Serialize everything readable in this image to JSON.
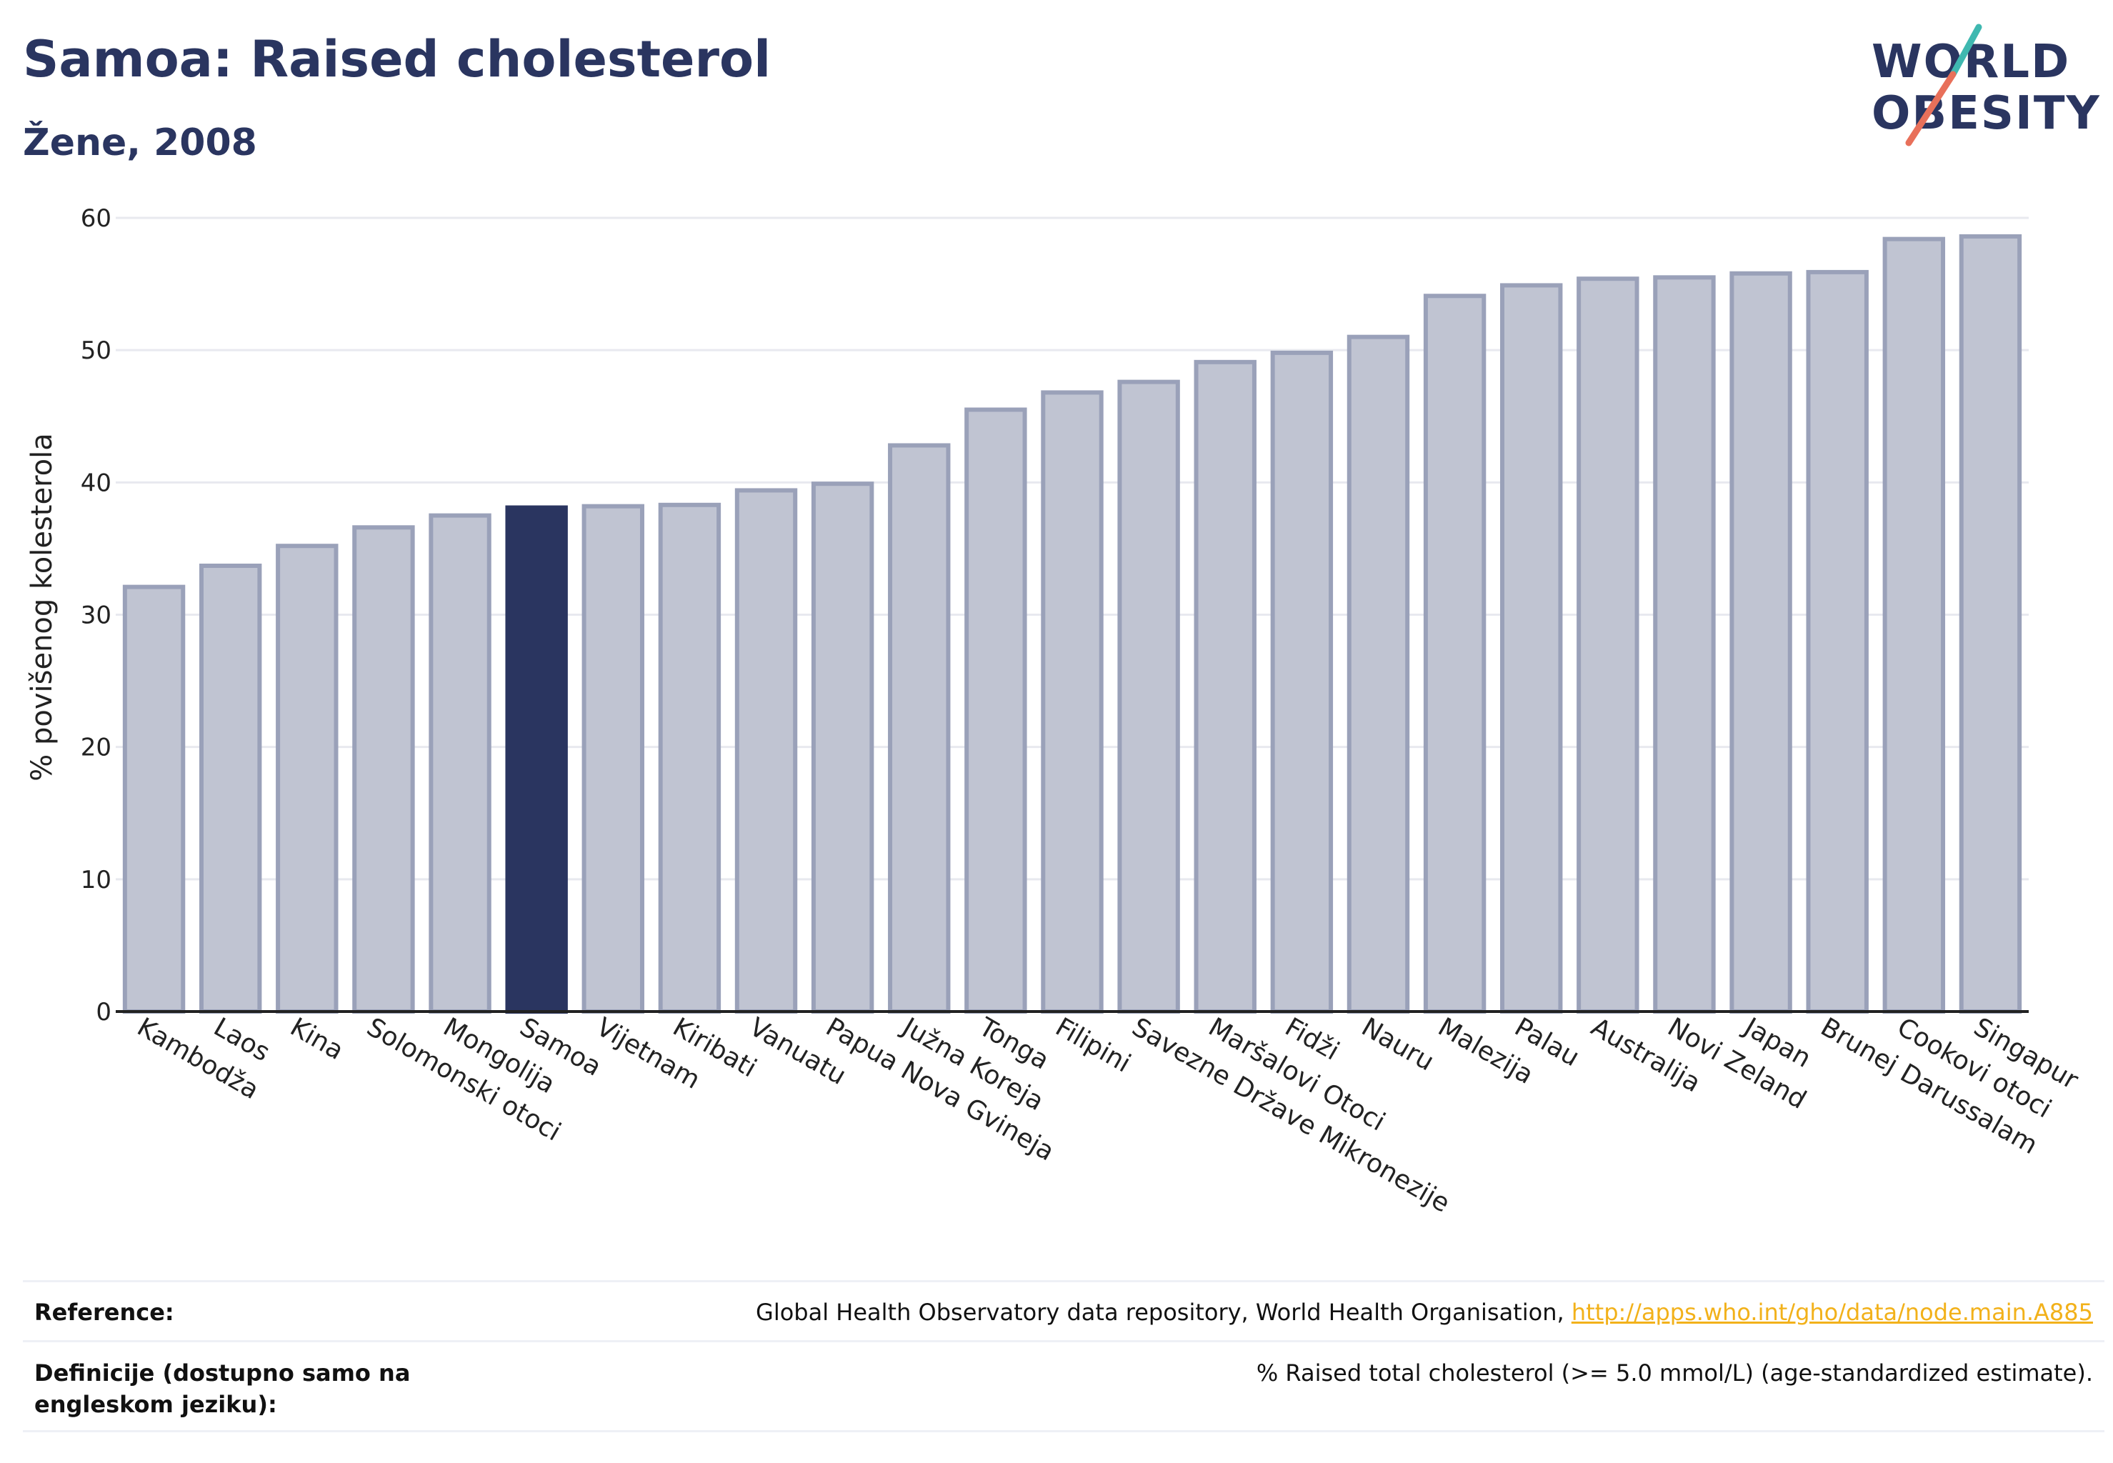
{
  "title": "Samoa: Raised cholesterol",
  "subtitle": "Žene, 2008",
  "logo": {
    "line1": "WORLD",
    "line2": "OBESITY",
    "colors": {
      "navy": "#2a3560",
      "teal": "#3fb8b0",
      "coral": "#e8705a"
    }
  },
  "chart_data": {
    "type": "bar",
    "ylabel": "% povišenog kolesterola",
    "xlabel": "",
    "ylim": [
      0,
      60
    ],
    "yticks": [
      0,
      10,
      20,
      30,
      40,
      50,
      60
    ],
    "grid": true,
    "highlight": "Samoa",
    "colors": {
      "bar": "#c0c4d2",
      "bar_border": "#9aa1b9",
      "highlight": "#2a3560",
      "grid": "#e8e9ef",
      "axis": "#222222"
    },
    "categories": [
      "Kambodža",
      "Laos",
      "Kina",
      "Solomonski otoci",
      "Mongolija",
      "Samoa",
      "Vijetnam",
      "Kiribati",
      "Vanuatu",
      "Papua Nova Gvineja",
      "Južna Koreja",
      "Tonga",
      "Filipini",
      "Savezne Države Mikronezije",
      "Maršalovi Otoci",
      "Fidži",
      "Nauru",
      "Malezija",
      "Palau",
      "Australija",
      "Novi Zeland",
      "Japan",
      "Brunej Darussalam",
      "Cookovi otoci",
      "Singapur"
    ],
    "values": [
      32.1,
      33.7,
      35.2,
      36.6,
      37.5,
      38.1,
      38.2,
      38.3,
      39.4,
      39.9,
      42.8,
      45.5,
      46.8,
      47.6,
      49.1,
      49.8,
      51.0,
      54.1,
      54.9,
      55.4,
      55.5,
      55.8,
      55.9,
      58.4,
      58.6
    ]
  },
  "footer": {
    "reference_label": "Reference:",
    "reference_text": "Global Health Observatory data repository, World Health Organisation, ",
    "reference_link": "http://apps.who.int/gho/data/node.main.A885",
    "definition_label": "Definicije (dostupno samo na engleskom jeziku):",
    "definition_text": "% Raised total cholesterol (>= 5.0 mmol/L) (age-standardized estimate)."
  }
}
